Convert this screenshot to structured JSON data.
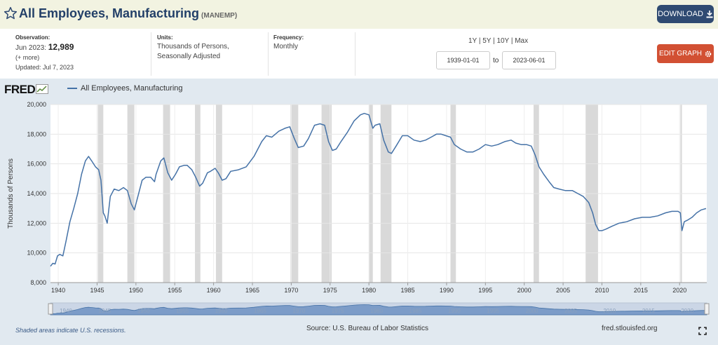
{
  "header": {
    "title": "All Employees, Manufacturing",
    "series_id": "(MANEMP)",
    "download_label": "DOWNLOAD"
  },
  "meta": {
    "observation_label": "Observation:",
    "observation_date": "Jun 2023:",
    "observation_value": "12,989",
    "more_label": "(+ more)",
    "updated": "Updated: Jul 7, 2023",
    "units_label": "Units:",
    "units_line1": "Thousands of Persons,",
    "units_line2": "Seasonally Adjusted",
    "frequency_label": "Frequency:",
    "frequency_value": "Monthly"
  },
  "controls": {
    "range_1y": "1Y",
    "range_5y": "5Y",
    "range_10y": "10Y",
    "range_max": "Max",
    "start_date": "1939-01-01",
    "to_label": "to",
    "end_date": "2023-06-01",
    "edit_label": "EDIT GRAPH"
  },
  "branding": {
    "logo_text": "FRED"
  },
  "footer": {
    "recession_note": "Shaded areas indicate U.S. recessions.",
    "source": "Source: U.S. Bureau of Labor Statistics",
    "site": "fred.stlouisfed.org"
  },
  "colors": {
    "series": "#4572a7",
    "recession": "#d9d9d9",
    "header_bg": "#f2f3e1",
    "download_bg": "#2f4a72",
    "edit_bg": "#d25033"
  },
  "chart_data": {
    "type": "line",
    "title": "",
    "ylabel": "Thousands of Persons",
    "xlim": [
      1939,
      2023.5
    ],
    "ylim": [
      8000,
      20000
    ],
    "yticks": [
      8000,
      10000,
      12000,
      14000,
      16000,
      18000,
      20000
    ],
    "ytick_labels": [
      "8,000",
      "10,000",
      "12,000",
      "14,000",
      "16,000",
      "18,000",
      "20,000"
    ],
    "xticks": [
      1940,
      1945,
      1950,
      1955,
      1960,
      1965,
      1970,
      1975,
      1980,
      1985,
      1990,
      1995,
      2000,
      2005,
      2010,
      2015,
      2020
    ],
    "grid": true,
    "legend_position": "top-left",
    "series": [
      {
        "name": "All Employees, Manufacturing",
        "x": [
          1939.0,
          1939.3,
          1939.6,
          1939.9,
          1940.2,
          1940.6,
          1941.0,
          1941.5,
          1942.0,
          1942.5,
          1943.0,
          1943.5,
          1943.9,
          1944.3,
          1944.8,
          1945.2,
          1945.5,
          1945.8,
          1946.0,
          1946.3,
          1946.7,
          1947.2,
          1947.8,
          1948.4,
          1948.9,
          1949.4,
          1949.8,
          1950.3,
          1950.8,
          1951.3,
          1951.9,
          1952.4,
          1952.6,
          1953.2,
          1953.6,
          1954.1,
          1954.6,
          1955.1,
          1955.6,
          1956.2,
          1956.6,
          1957.2,
          1957.7,
          1958.2,
          1958.6,
          1959.2,
          1959.6,
          1960.2,
          1960.6,
          1961.1,
          1961.6,
          1962.2,
          1963.2,
          1964.2,
          1965.2,
          1966.2,
          1966.8,
          1967.5,
          1968.4,
          1969.2,
          1969.8,
          1970.4,
          1970.9,
          1971.6,
          1972.2,
          1973.0,
          1973.7,
          1974.3,
          1974.8,
          1975.3,
          1975.8,
          1976.4,
          1977.2,
          1978.1,
          1978.9,
          1979.4,
          1980.0,
          1980.5,
          1980.8,
          1981.4,
          1981.9,
          1982.5,
          1982.9,
          1983.5,
          1984.3,
          1985.0,
          1985.8,
          1986.6,
          1987.3,
          1988.0,
          1988.7,
          1989.3,
          1989.9,
          1990.5,
          1991.0,
          1991.8,
          1992.6,
          1993.4,
          1994.2,
          1995.0,
          1995.8,
          1996.6,
          1997.5,
          1998.3,
          1998.9,
          1999.6,
          2000.3,
          2000.9,
          2001.4,
          2001.9,
          2002.5,
          2003.2,
          2003.8,
          2004.5,
          2005.3,
          2006.2,
          2006.9,
          2007.6,
          2008.3,
          2008.8,
          2009.2,
          2009.6,
          2010.0,
          2010.5,
          2011.3,
          2012.2,
          2013.2,
          2014.2,
          2015.2,
          2016.2,
          2017.2,
          2018.2,
          2019.0,
          2019.8,
          2020.1,
          2020.3,
          2020.6,
          2021.0,
          2021.6,
          2022.2,
          2022.8,
          2023.4
        ],
        "values": [
          9100,
          9300,
          9250,
          9800,
          9900,
          9800,
          10800,
          12100,
          13000,
          14000,
          15300,
          16200,
          16500,
          16200,
          15800,
          15600,
          14900,
          12700,
          12500,
          12000,
          13800,
          14300,
          14200,
          14400,
          14200,
          13300,
          12900,
          13900,
          14900,
          15100,
          15100,
          14800,
          15300,
          16200,
          16400,
          15400,
          14900,
          15300,
          15800,
          15900,
          15900,
          15600,
          15100,
          14500,
          14700,
          15400,
          15500,
          15700,
          15400,
          14900,
          15000,
          15500,
          15600,
          15800,
          16500,
          17500,
          17900,
          17800,
          18200,
          18400,
          18500,
          17700,
          17100,
          17200,
          17700,
          18600,
          18700,
          18600,
          17500,
          16900,
          17000,
          17500,
          18100,
          18900,
          19300,
          19400,
          19300,
          18400,
          18600,
          18700,
          17600,
          16800,
          16700,
          17200,
          17900,
          17900,
          17600,
          17500,
          17600,
          17800,
          18000,
          18000,
          17900,
          17800,
          17300,
          17000,
          16800,
          16800,
          17000,
          17300,
          17200,
          17300,
          17500,
          17600,
          17400,
          17300,
          17300,
          17200,
          16600,
          15800,
          15300,
          14800,
          14400,
          14300,
          14200,
          14200,
          14000,
          13800,
          13400,
          12700,
          11900,
          11500,
          11500,
          11600,
          11800,
          12000,
          12100,
          12300,
          12400,
          12400,
          12500,
          12700,
          12800,
          12800,
          12700,
          11500,
          12100,
          12200,
          12400,
          12700,
          12900,
          12989
        ]
      }
    ],
    "recessions": [
      [
        1945.1,
        1945.8
      ],
      [
        1948.9,
        1949.8
      ],
      [
        1953.5,
        1954.4
      ],
      [
        1957.6,
        1958.3
      ],
      [
        1960.3,
        1961.1
      ],
      [
        1969.9,
        1970.9
      ],
      [
        1973.9,
        1975.2
      ],
      [
        1980.0,
        1980.5
      ],
      [
        1981.5,
        1982.9
      ],
      [
        1990.5,
        1991.2
      ],
      [
        2001.2,
        2001.9
      ],
      [
        2007.9,
        2009.5
      ],
      [
        2020.1,
        2020.3
      ]
    ]
  }
}
